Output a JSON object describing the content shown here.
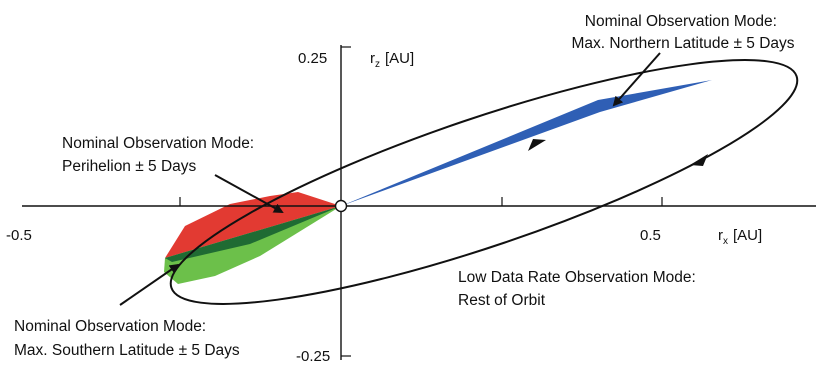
{
  "axes": {
    "x_label_main": "r",
    "x_label_sub": "x",
    "x_label_unit": "[AU]",
    "z_label_main": "r",
    "z_label_sub": "z",
    "z_label_unit": "[AU]",
    "x_ticks": [
      "-0.5",
      "0.5"
    ],
    "z_ticks": [
      "0.25",
      "-0.25"
    ]
  },
  "annotations": {
    "northern": [
      "Nominal Observation Mode:",
      "Max. Northern Latitude ± 5 Days"
    ],
    "perihelion": [
      "Nominal Observation Mode:",
      "Perihelion ± 5 Days"
    ],
    "southern": [
      "Nominal Observation Mode:",
      "Max. Southern Latitude ± 5 Days"
    ],
    "low_rate": [
      "Low Data Rate Observation Mode:",
      "Rest of Orbit"
    ]
  },
  "colors": {
    "northern_segment": "#2f5fb5",
    "perihelion_segment": "#e23a32",
    "southern_segment": "#6cc04a",
    "southern_segment_dark": "#1f6b33",
    "orbit": "#111111"
  }
}
